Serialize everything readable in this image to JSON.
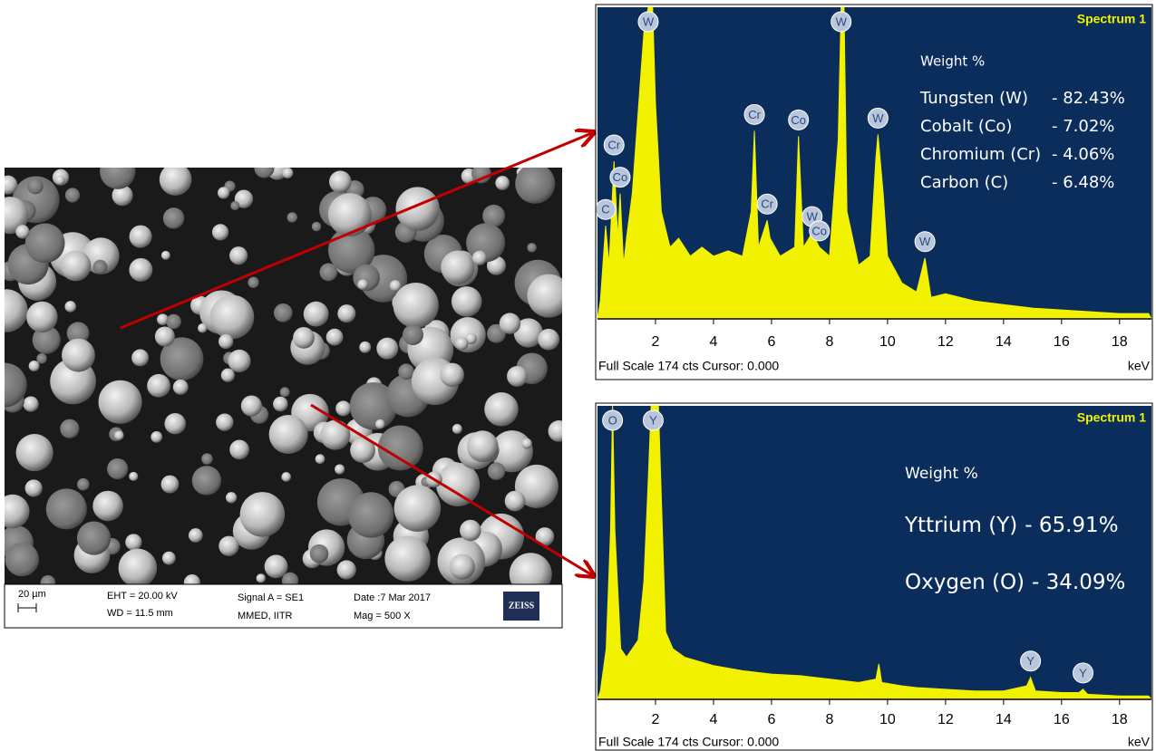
{
  "sem_image": {
    "scale_bar": "20 µm",
    "eht": "EHT = 20.00 kV",
    "wd": "WD = 11.5 mm",
    "signal": "Signal A = SE1",
    "operator": "MMED, IITR",
    "date": "Date :7 Mar 2017",
    "mag": "Mag =   500 X",
    "logo": "ZEISS"
  },
  "chart_data": [
    {
      "type": "area",
      "title": "Spectrum 1",
      "footer": "Full Scale 174 cts Cursor: 0.000",
      "x_label": "keV",
      "color": "#f2f200",
      "background": "#0b2d5c",
      "x": [
        0.1,
        0.28,
        0.4,
        0.57,
        0.7,
        0.78,
        0.9,
        1.0,
        1.2,
        1.4,
        1.6,
        1.75,
        1.9,
        2.0,
        2.2,
        2.5,
        2.8,
        3.2,
        3.6,
        4.0,
        4.5,
        5.0,
        5.3,
        5.41,
        5.55,
        5.85,
        5.95,
        6.3,
        6.8,
        6.93,
        7.1,
        7.4,
        7.65,
        8.0,
        8.3,
        8.4,
        8.5,
        8.6,
        9.0,
        9.4,
        9.6,
        9.67,
        9.85,
        10.0,
        10.5,
        11.0,
        11.29,
        11.5,
        12,
        13,
        14,
        15,
        16,
        17,
        18,
        19
      ],
      "values": [
        10,
        52,
        30,
        88,
        45,
        70,
        30,
        45,
        70,
        115,
        160,
        174,
        174,
        120,
        60,
        40,
        45,
        35,
        40,
        35,
        38,
        35,
        60,
        105,
        40,
        55,
        45,
        35,
        40,
        102,
        40,
        48,
        40,
        35,
        100,
        174,
        174,
        60,
        30,
        35,
        90,
        103,
        70,
        35,
        20,
        15,
        34,
        12,
        14,
        10,
        8,
        6,
        5,
        4,
        3,
        3
      ],
      "xlim": [
        0,
        19.1
      ],
      "ylim": [
        0,
        174
      ],
      "xticks": [
        2,
        4,
        6,
        8,
        10,
        12,
        14,
        16,
        18
      ],
      "peak_labels": [
        {
          "text": "C",
          "x": 0.28
        },
        {
          "text": "Cr",
          "x": 0.57
        },
        {
          "text": "Co",
          "x": 0.78
        },
        {
          "text": "W",
          "x": 1.75
        },
        {
          "text": "Cr",
          "x": 5.41
        },
        {
          "text": "Cr",
          "x": 5.85
        },
        {
          "text": "Co",
          "x": 6.93
        },
        {
          "text": "W",
          "x": 7.4
        },
        {
          "text": "Co",
          "x": 7.65
        },
        {
          "text": "W",
          "x": 8.4
        },
        {
          "text": "W",
          "x": 9.67
        },
        {
          "text": "W",
          "x": 11.29
        }
      ],
      "composition_heading": "Weight %",
      "composition": [
        {
          "element": "Tungsten (W)",
          "value": "- 82.43%"
        },
        {
          "element": "Cobalt (Co)",
          "value": "- 7.02%"
        },
        {
          "element": "Chromium (Cr)",
          "value": "- 4.06%"
        },
        {
          "element": "Carbon (C)",
          "value": "- 6.48%"
        }
      ]
    },
    {
      "type": "area",
      "title": "Spectrum 1",
      "footer": "Full Scale 174 cts Cursor: 0.000",
      "x_label": "keV",
      "color": "#f2f200",
      "background": "#0b2d5c",
      "x": [
        0.1,
        0.3,
        0.45,
        0.52,
        0.6,
        0.8,
        1.0,
        1.4,
        1.6,
        1.75,
        1.85,
        2.1,
        2.2,
        2.35,
        2.6,
        3,
        4,
        5,
        6,
        7,
        8,
        9,
        9.6,
        9.7,
        9.8,
        10.5,
        11,
        12,
        13,
        14,
        14.8,
        14.93,
        15.1,
        16,
        16.6,
        16.74,
        16.9,
        18,
        19
      ],
      "values": [
        5,
        30,
        100,
        174,
        100,
        30,
        25,
        35,
        70,
        130,
        174,
        174,
        120,
        40,
        30,
        25,
        20,
        17,
        15,
        14,
        12,
        10,
        12,
        21,
        10,
        8,
        7,
        6,
        5,
        5,
        8,
        13,
        5,
        4,
        4,
        6,
        3,
        2,
        2
      ],
      "xlim": [
        0,
        19.1
      ],
      "ylim": [
        0,
        174
      ],
      "xticks": [
        2,
        4,
        6,
        8,
        10,
        12,
        14,
        16,
        18
      ],
      "peak_labels": [
        {
          "text": "O",
          "x": 0.52
        },
        {
          "text": "Y",
          "x": 1.92
        },
        {
          "text": "Y",
          "x": 14.93
        },
        {
          "text": "Y",
          "x": 16.74
        }
      ],
      "composition_heading": "Weight %",
      "composition": [
        {
          "element": "Yttrium (Y)",
          "value": "- 65.91%"
        },
        {
          "element": "Oxygen (O)",
          "value": "- 34.09%"
        }
      ]
    }
  ]
}
